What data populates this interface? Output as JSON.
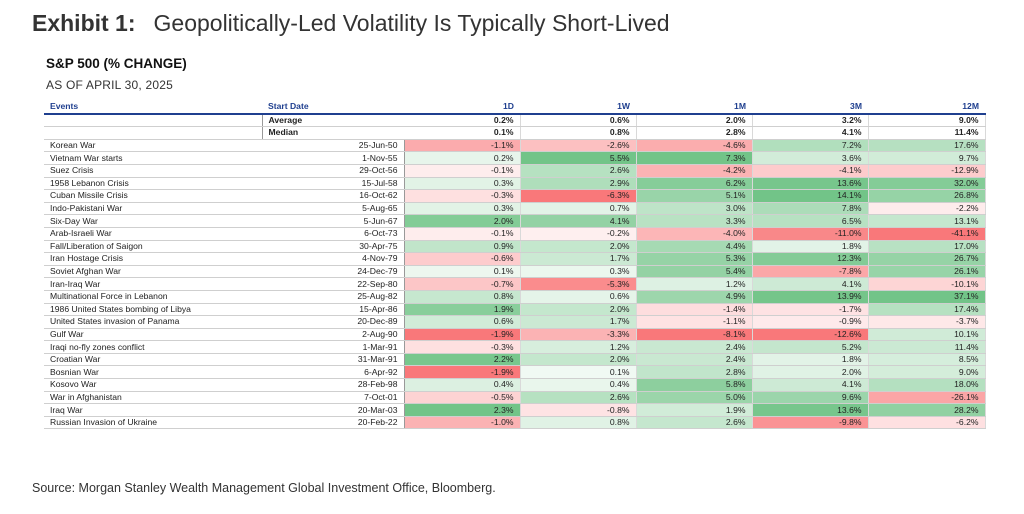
{
  "exhibit": {
    "label": "Exhibit 1:",
    "title": "Geopolitically-Led Volatility Is Typically Short-Lived"
  },
  "subtitle": "S&P 500 (% CHANGE)",
  "as_of": "AS OF APRIL 30, 2025",
  "source": "Source: Morgan Stanley Wealth Management Global Investment Office, Bloomberg.",
  "colors": {
    "header_text": "#1f3f8f",
    "positive": "#63be7b",
    "negative": "#f8696b"
  },
  "chart_data": {
    "type": "table",
    "columns": [
      "Events",
      "Start Date",
      "1D",
      "1W",
      "1M",
      "3M",
      "12M"
    ],
    "summary": [
      {
        "label": "Average",
        "values": [
          "0.2%",
          "0.6%",
          "2.0%",
          "3.2%",
          "9.0%"
        ]
      },
      {
        "label": "Median",
        "values": [
          "0.1%",
          "0.8%",
          "2.8%",
          "4.1%",
          "11.4%"
        ]
      }
    ],
    "rows": [
      {
        "event": "Korean War",
        "date": "25-Jun-50",
        "values": [
          -1.1,
          -2.6,
          -4.6,
          7.2,
          17.6
        ]
      },
      {
        "event": "Vietnam War starts",
        "date": "1-Nov-55",
        "values": [
          0.2,
          5.5,
          7.3,
          3.6,
          9.7
        ]
      },
      {
        "event": "Suez Crisis",
        "date": "29-Oct-56",
        "values": [
          -0.1,
          2.6,
          -4.2,
          -4.1,
          -12.9
        ]
      },
      {
        "event": "1958 Lebanon Crisis",
        "date": "15-Jul-58",
        "values": [
          0.3,
          2.9,
          6.2,
          13.6,
          32.0
        ]
      },
      {
        "event": "Cuban Missile Crisis",
        "date": "16-Oct-62",
        "values": [
          -0.3,
          -6.3,
          5.1,
          14.1,
          26.8
        ]
      },
      {
        "event": "Indo-Pakistani War",
        "date": "5-Aug-65",
        "values": [
          0.3,
          0.7,
          3.0,
          7.8,
          -2.2
        ]
      },
      {
        "event": "Six-Day War",
        "date": "5-Jun-67",
        "values": [
          2.0,
          4.1,
          3.3,
          6.5,
          13.1
        ]
      },
      {
        "event": "Arab-Israeli War",
        "date": "6-Oct-73",
        "values": [
          -0.1,
          -0.2,
          -4.0,
          -11.0,
          -41.1
        ]
      },
      {
        "event": "Fall/Liberation of Saigon",
        "date": "30-Apr-75",
        "values": [
          0.9,
          2.0,
          4.4,
          1.8,
          17.0
        ]
      },
      {
        "event": "Iran Hostage Crisis",
        "date": "4-Nov-79",
        "values": [
          -0.6,
          1.7,
          5.3,
          12.3,
          26.7
        ]
      },
      {
        "event": "Soviet Afghan War",
        "date": "24-Dec-79",
        "values": [
          0.1,
          0.3,
          5.4,
          -7.8,
          26.1
        ]
      },
      {
        "event": "Iran-Iraq War",
        "date": "22-Sep-80",
        "values": [
          -0.7,
          -5.3,
          1.2,
          4.1,
          -10.1
        ]
      },
      {
        "event": "Multinational Force in Lebanon",
        "date": "25-Aug-82",
        "values": [
          0.8,
          0.6,
          4.9,
          13.9,
          37.1
        ]
      },
      {
        "event": "1986 United States bombing of Libya",
        "date": "15-Apr-86",
        "values": [
          1.9,
          2.0,
          -1.4,
          -1.7,
          17.4
        ]
      },
      {
        "event": "United States invasion of Panama",
        "date": "20-Dec-89",
        "values": [
          0.6,
          1.7,
          -1.1,
          -0.9,
          -3.7
        ]
      },
      {
        "event": "Gulf War",
        "date": "2-Aug-90",
        "values": [
          -1.9,
          -3.3,
          -8.1,
          -12.6,
          10.1
        ]
      },
      {
        "event": "Iraqi no-fly zones conflict",
        "date": "1-Mar-91",
        "values": [
          -0.3,
          1.2,
          2.4,
          5.2,
          11.4
        ]
      },
      {
        "event": "Croatian War",
        "date": "31-Mar-91",
        "values": [
          2.2,
          2.0,
          2.4,
          1.8,
          8.5
        ]
      },
      {
        "event": "Bosnian War",
        "date": "6-Apr-92",
        "values": [
          -1.9,
          0.1,
          2.8,
          2.0,
          9.0
        ]
      },
      {
        "event": "Kosovo War",
        "date": "28-Feb-98",
        "values": [
          0.4,
          0.4,
          5.8,
          4.1,
          18.0
        ]
      },
      {
        "event": "War in Afghanistan",
        "date": "7-Oct-01",
        "values": [
          -0.5,
          2.6,
          5.0,
          9.6,
          -26.1
        ]
      },
      {
        "event": "Iraq War",
        "date": "20-Mar-03",
        "values": [
          2.3,
          -0.8,
          1.9,
          13.6,
          28.2
        ]
      },
      {
        "event": "Russian Invasion of Ukraine",
        "date": "20-Feb-22",
        "values": [
          -1.0,
          0.8,
          2.6,
          -9.8,
          -6.2
        ]
      }
    ]
  }
}
